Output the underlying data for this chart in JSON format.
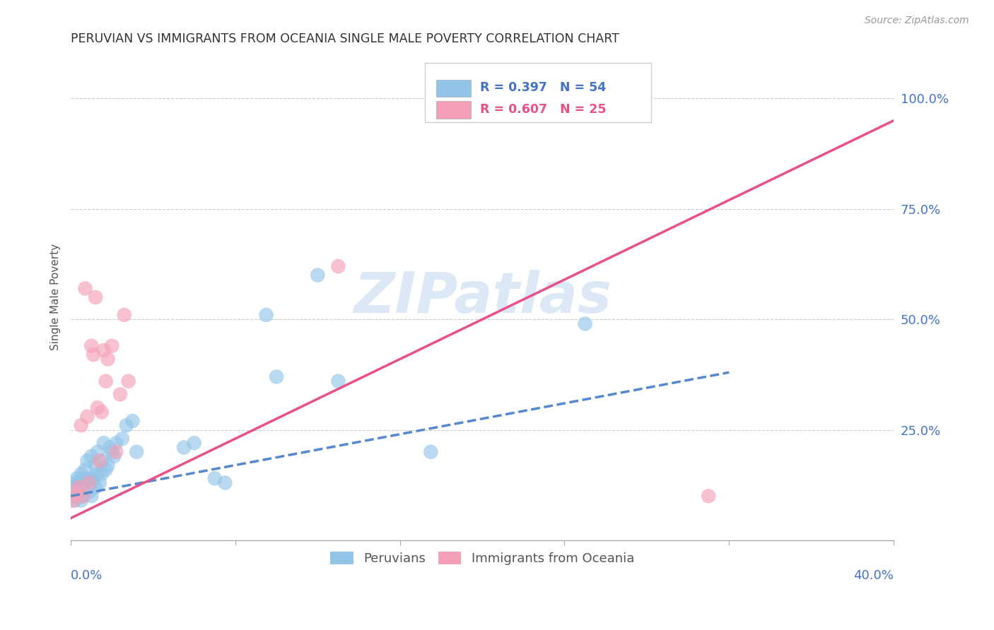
{
  "title": "PERUVIAN VS IMMIGRANTS FROM OCEANIA SINGLE MALE POVERTY CORRELATION CHART",
  "source": "Source: ZipAtlas.com",
  "ylabel": "Single Male Poverty",
  "yticks": [
    0.0,
    0.25,
    0.5,
    0.75,
    1.0
  ],
  "ytick_labels": [
    "",
    "25.0%",
    "50.0%",
    "75.0%",
    "100.0%"
  ],
  "xlim": [
    0.0,
    0.4
  ],
  "ylim": [
    0.0,
    1.1
  ],
  "legend_r1": "R = 0.397   N = 54",
  "legend_r2": "R = 0.607   N = 25",
  "legend_label1": "Peruvians",
  "legend_label2": "Immigrants from Oceania",
  "color_blue": "#92C5E8",
  "color_pink": "#F4A0B8",
  "color_blue_line": "#5588CC",
  "color_pink_line": "#E8508A",
  "color_blue_text": "#4472C4",
  "watermark": "ZIPatlas",
  "blue_line_x0": 0.0,
  "blue_line_y0": 0.1,
  "blue_line_x1": 0.32,
  "blue_line_y1": 0.38,
  "pink_line_x0": 0.0,
  "pink_line_y0": 0.05,
  "pink_line_x1": 0.4,
  "pink_line_y1": 0.95,
  "peruvian_x": [
    0.001,
    0.001,
    0.002,
    0.002,
    0.002,
    0.003,
    0.003,
    0.003,
    0.004,
    0.004,
    0.005,
    0.005,
    0.005,
    0.006,
    0.006,
    0.007,
    0.007,
    0.007,
    0.008,
    0.008,
    0.009,
    0.009,
    0.01,
    0.01,
    0.01,
    0.011,
    0.012,
    0.012,
    0.013,
    0.013,
    0.014,
    0.015,
    0.015,
    0.016,
    0.017,
    0.018,
    0.019,
    0.02,
    0.021,
    0.022,
    0.025,
    0.027,
    0.03,
    0.032,
    0.055,
    0.06,
    0.07,
    0.075,
    0.095,
    0.1,
    0.12,
    0.13,
    0.175,
    0.25
  ],
  "peruvian_y": [
    0.1,
    0.12,
    0.09,
    0.11,
    0.13,
    0.1,
    0.12,
    0.14,
    0.1,
    0.13,
    0.09,
    0.11,
    0.15,
    0.1,
    0.14,
    0.11,
    0.13,
    0.16,
    0.12,
    0.18,
    0.11,
    0.14,
    0.1,
    0.13,
    0.19,
    0.14,
    0.12,
    0.17,
    0.15,
    0.2,
    0.13,
    0.15,
    0.18,
    0.22,
    0.16,
    0.17,
    0.21,
    0.2,
    0.19,
    0.22,
    0.23,
    0.26,
    0.27,
    0.2,
    0.21,
    0.22,
    0.14,
    0.13,
    0.51,
    0.37,
    0.6,
    0.36,
    0.2,
    0.49
  ],
  "oceania_x": [
    0.001,
    0.002,
    0.003,
    0.004,
    0.005,
    0.006,
    0.007,
    0.008,
    0.009,
    0.01,
    0.011,
    0.012,
    0.013,
    0.014,
    0.015,
    0.016,
    0.017,
    0.018,
    0.02,
    0.022,
    0.024,
    0.026,
    0.028,
    0.13,
    0.31
  ],
  "oceania_y": [
    0.09,
    0.1,
    0.11,
    0.12,
    0.26,
    0.1,
    0.57,
    0.28,
    0.13,
    0.44,
    0.42,
    0.55,
    0.3,
    0.18,
    0.29,
    0.43,
    0.36,
    0.41,
    0.44,
    0.2,
    0.33,
    0.51,
    0.36,
    0.62,
    0.1
  ]
}
